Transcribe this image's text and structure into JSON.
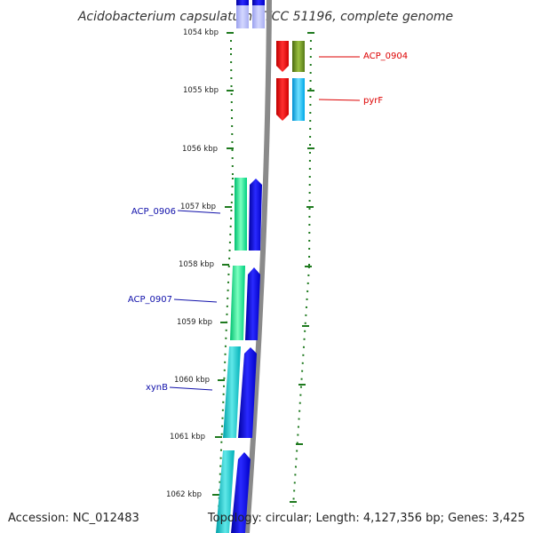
{
  "title": "Acidobacterium capsulatum ATCC 51196, complete genome",
  "footer": {
    "accession": "Accession: NC_012483",
    "topology": "Topology: circular; Length: 4,127,356 bp; Genes: 3,425"
  },
  "colors": {
    "backbone": "#8a8a8a",
    "tick_marks": "#1f7a1f",
    "label_red": "#dd0000",
    "label_blue": "#1010aa"
  },
  "ticks": [
    {
      "label": "1054 kbp"
    },
    {
      "label": "1055 kbp"
    },
    {
      "label": "1056 kbp"
    },
    {
      "label": "1057 kbp"
    },
    {
      "label": "1058 kbp"
    },
    {
      "label": "1059 kbp"
    },
    {
      "label": "1060 kbp"
    },
    {
      "label": "1061 kbp"
    },
    {
      "label": "1062 kbp"
    }
  ],
  "gene_labels": [
    {
      "text": "ACP_0904",
      "color": "#dd0000"
    },
    {
      "text": "pyrF",
      "color": "#dd0000"
    },
    {
      "text": "ACP_0906",
      "color": "#1010aa"
    },
    {
      "text": "ACP_0907",
      "color": "#1010aa"
    },
    {
      "text": "xynB",
      "color": "#1010aa"
    }
  ]
}
